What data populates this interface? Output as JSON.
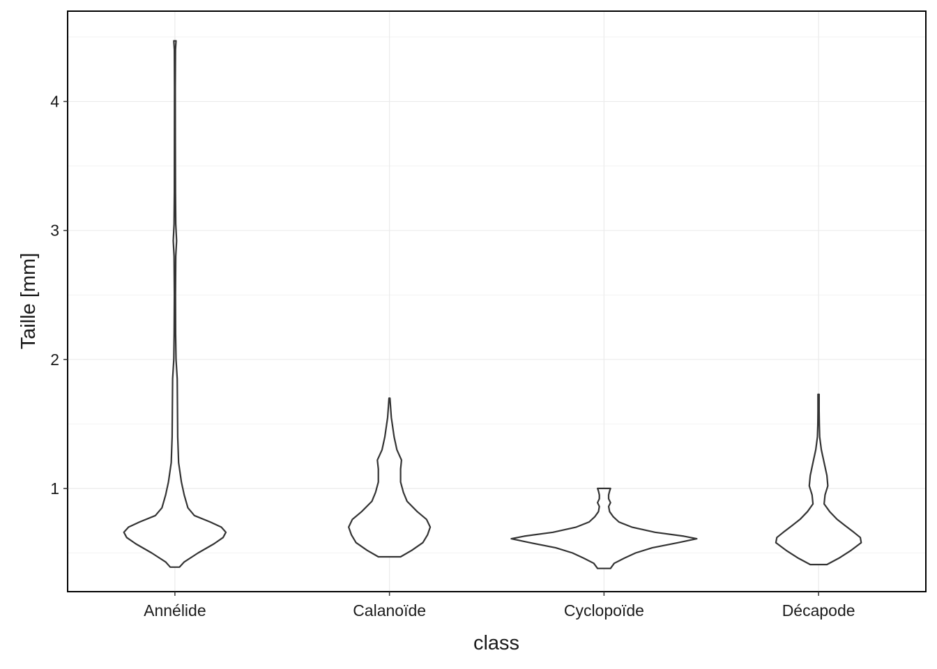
{
  "chart_data": {
    "type": "violin",
    "title": "",
    "xlabel": "class",
    "ylabel": "Taille  [mm]",
    "ylim": [
      0.2,
      4.7
    ],
    "y_ticks": [
      1,
      2,
      3,
      4
    ],
    "y_minor_ticks": [
      0.5,
      1.5,
      2.5,
      3.5,
      4.5
    ],
    "grid": true,
    "categories": [
      "Annélide",
      "Calanoïde",
      "Cyclopoïde",
      "Décapode"
    ],
    "violins": [
      {
        "category": "Annélide",
        "min": 0.39,
        "max": 4.47,
        "profile": [
          [
            0.39,
            0.05
          ],
          [
            0.43,
            0.1
          ],
          [
            0.5,
            0.25
          ],
          [
            0.57,
            0.42
          ],
          [
            0.62,
            0.52
          ],
          [
            0.66,
            0.55
          ],
          [
            0.7,
            0.5
          ],
          [
            0.74,
            0.38
          ],
          [
            0.79,
            0.21
          ],
          [
            0.85,
            0.14
          ],
          [
            0.95,
            0.1
          ],
          [
            1.05,
            0.07
          ],
          [
            1.2,
            0.04
          ],
          [
            1.4,
            0.03
          ],
          [
            1.6,
            0.028
          ],
          [
            1.85,
            0.025
          ],
          [
            2.0,
            0.012
          ],
          [
            2.2,
            0.008
          ],
          [
            2.5,
            0.006
          ],
          [
            2.8,
            0.009
          ],
          [
            2.92,
            0.018
          ],
          [
            3.05,
            0.009
          ],
          [
            3.3,
            0.006
          ],
          [
            3.7,
            0.005
          ],
          [
            4.1,
            0.004
          ],
          [
            4.4,
            0.006
          ],
          [
            4.47,
            0.012
          ]
        ]
      },
      {
        "category": "Calanoïde",
        "min": 0.47,
        "max": 1.7,
        "profile": [
          [
            0.47,
            0.12
          ],
          [
            0.52,
            0.24
          ],
          [
            0.58,
            0.36
          ],
          [
            0.64,
            0.41
          ],
          [
            0.7,
            0.44
          ],
          [
            0.76,
            0.4
          ],
          [
            0.82,
            0.3
          ],
          [
            0.9,
            0.19
          ],
          [
            0.97,
            0.15
          ],
          [
            1.05,
            0.12
          ],
          [
            1.15,
            0.12
          ],
          [
            1.22,
            0.13
          ],
          [
            1.3,
            0.08
          ],
          [
            1.4,
            0.05
          ],
          [
            1.55,
            0.02
          ],
          [
            1.7,
            0.005
          ]
        ]
      },
      {
        "category": "Cyclopoïde",
        "min": 0.38,
        "max": 1.0,
        "profile": [
          [
            0.38,
            0.07
          ],
          [
            0.42,
            0.11
          ],
          [
            0.46,
            0.22
          ],
          [
            0.5,
            0.34
          ],
          [
            0.54,
            0.52
          ],
          [
            0.58,
            0.8
          ],
          [
            0.61,
            1.0
          ],
          [
            0.63,
            0.86
          ],
          [
            0.66,
            0.55
          ],
          [
            0.7,
            0.3
          ],
          [
            0.74,
            0.16
          ],
          [
            0.78,
            0.1
          ],
          [
            0.82,
            0.06
          ],
          [
            0.86,
            0.05
          ],
          [
            0.89,
            0.07
          ],
          [
            0.92,
            0.05
          ],
          [
            0.95,
            0.05
          ],
          [
            0.98,
            0.06
          ],
          [
            1.0,
            0.07
          ]
        ]
      },
      {
        "category": "Décapode",
        "min": 0.41,
        "max": 1.73,
        "profile": [
          [
            0.41,
            0.09
          ],
          [
            0.46,
            0.22
          ],
          [
            0.52,
            0.35
          ],
          [
            0.58,
            0.46
          ],
          [
            0.62,
            0.45
          ],
          [
            0.66,
            0.38
          ],
          [
            0.71,
            0.29
          ],
          [
            0.76,
            0.2
          ],
          [
            0.82,
            0.12
          ],
          [
            0.88,
            0.06
          ],
          [
            0.95,
            0.07
          ],
          [
            1.02,
            0.1
          ],
          [
            1.1,
            0.09
          ],
          [
            1.2,
            0.06
          ],
          [
            1.3,
            0.03
          ],
          [
            1.4,
            0.012
          ],
          [
            1.5,
            0.008
          ],
          [
            1.6,
            0.006
          ],
          [
            1.73,
            0.006
          ]
        ]
      }
    ]
  }
}
